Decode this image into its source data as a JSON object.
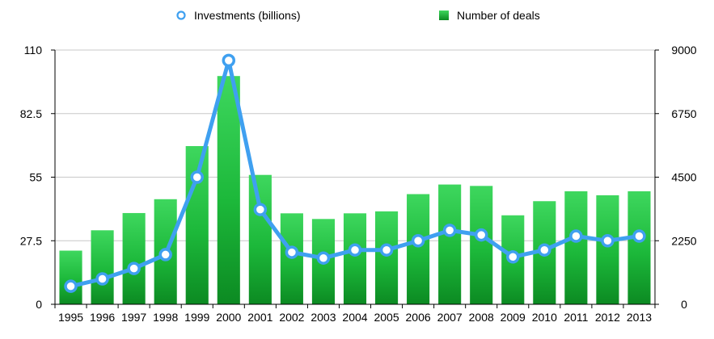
{
  "chart_data": {
    "type": "bar",
    "categories": [
      "1995",
      "1996",
      "1997",
      "1998",
      "1999",
      "2000",
      "2001",
      "2002",
      "2003",
      "2004",
      "2005",
      "2006",
      "2007",
      "2008",
      "2009",
      "2010",
      "2011",
      "2012",
      "2013"
    ],
    "series": [
      {
        "name": "Investments (billions)",
        "type": "line",
        "axis": "left",
        "color": "#3fa0f0",
        "values": [
          7.8,
          11,
          15.5,
          21.5,
          55,
          105.5,
          41,
          22.5,
          20,
          23.5,
          23.5,
          27.5,
          32,
          30,
          20.5,
          23.5,
          29.5,
          27.5,
          29.5
        ]
      },
      {
        "name": "Number of deals",
        "type": "bar",
        "axis": "right",
        "color": "#1fb83a",
        "values": [
          1900,
          2620,
          3230,
          3720,
          5600,
          8080,
          4580,
          3220,
          3020,
          3220,
          3290,
          3900,
          4240,
          4190,
          3150,
          3650,
          4000,
          3860,
          4000
        ]
      }
    ],
    "left_axis": {
      "ylim": [
        0,
        110
      ],
      "ticks": [
        "0",
        "27.5",
        "55",
        "82.5",
        "110"
      ]
    },
    "right_axis": {
      "ylim": [
        0,
        9000
      ],
      "ticks": [
        "0",
        "2250",
        "4500",
        "6750",
        "9000"
      ]
    },
    "legend_placement": "top-center",
    "grid": true
  }
}
